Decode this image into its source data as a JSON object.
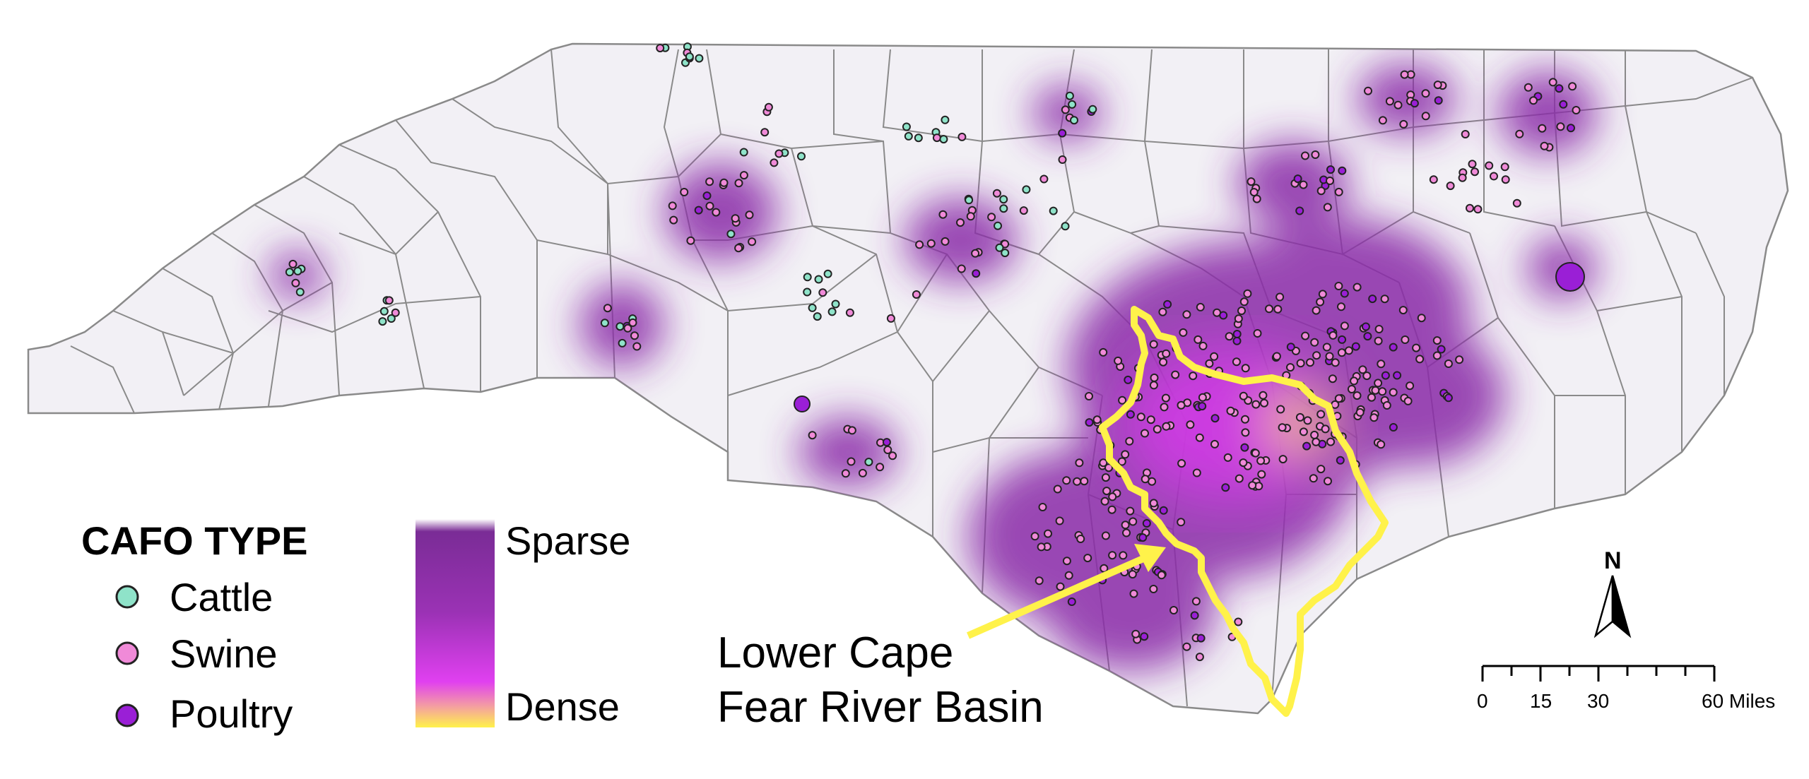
{
  "legend": {
    "title": "CAFO TYPE",
    "items": [
      {
        "label": "Cattle",
        "color": "#8fe3c9"
      },
      {
        "label": "Swine",
        "color": "#f08ad8"
      },
      {
        "label": "Poultry",
        "color": "#9a1fd6"
      }
    ]
  },
  "density_legend": {
    "sparse_label": "Sparse",
    "dense_label": "Dense",
    "colors": {
      "sparse": "#7a2c96",
      "mid": "#e040f0",
      "dense": "#fff24a"
    }
  },
  "annotation": {
    "line1": "Lower Cape",
    "line2": "Fear River Basin",
    "color": "#fff24a"
  },
  "north_arrow": {
    "label": "N"
  },
  "scale_bar": {
    "ticks": [
      "0",
      "15",
      "30",
      "60 Miles"
    ]
  },
  "colors": {
    "state_fill": "#f2f0f5",
    "county_line": "#8a8a8a",
    "heat": "#8a2aa8",
    "basin": "#fff24a"
  }
}
